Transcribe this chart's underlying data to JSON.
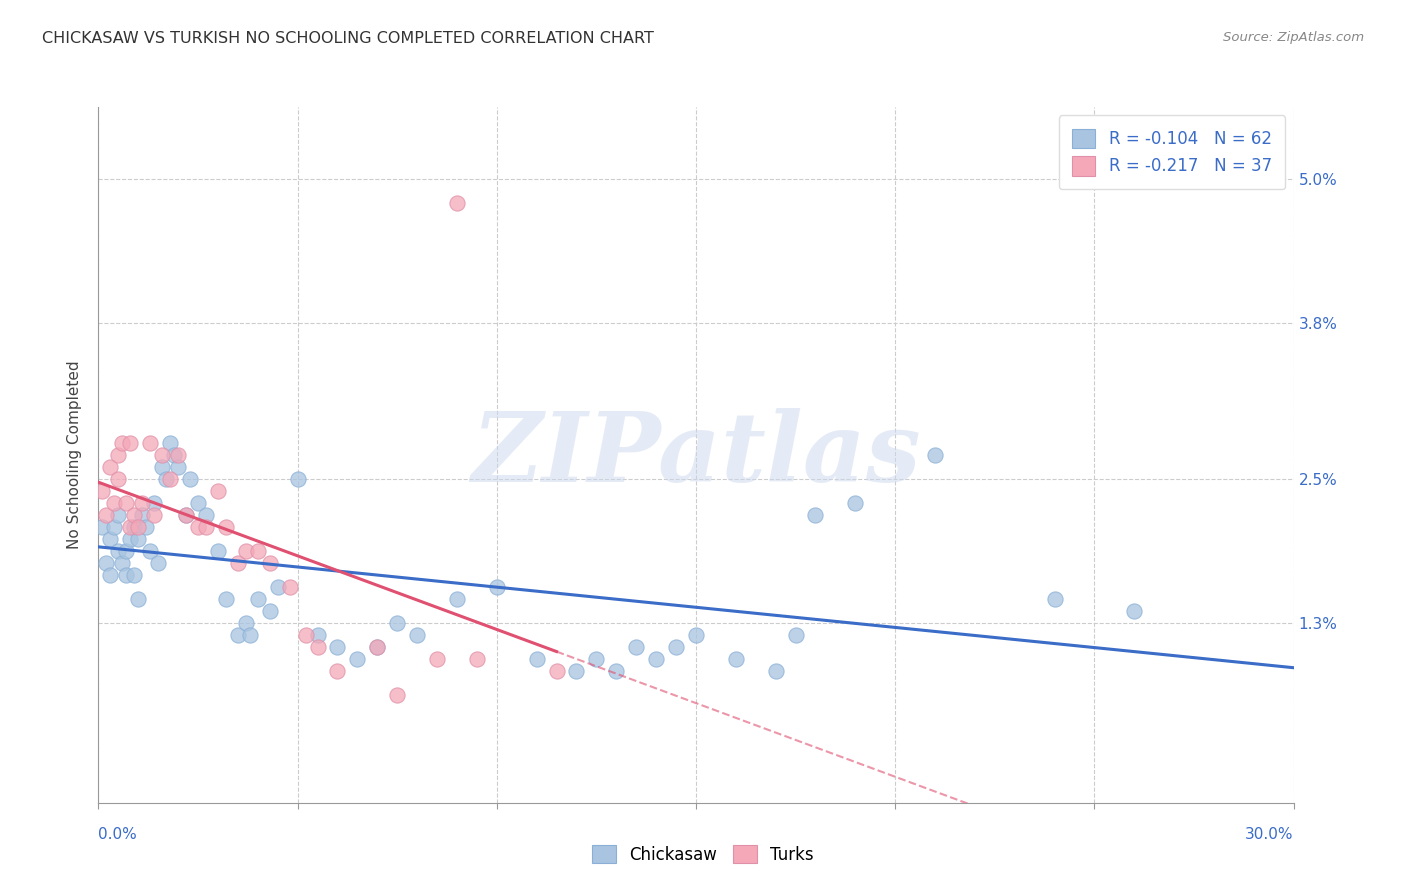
{
  "title": "CHICKASAW VS TURKISH NO SCHOOLING COMPLETED CORRELATION CHART",
  "source": "Source: ZipAtlas.com",
  "ylabel": "No Schooling Completed",
  "yticks": [
    "1.3%",
    "2.5%",
    "3.8%",
    "5.0%"
  ],
  "ytick_values": [
    0.013,
    0.025,
    0.038,
    0.05
  ],
  "xlim": [
    0.0,
    0.3
  ],
  "ylim": [
    -0.002,
    0.056
  ],
  "chickasaw_R": -0.104,
  "chickasaw_N": 62,
  "turks_R": -0.217,
  "turks_N": 37,
  "chickasaw_color": "#a8c4e0",
  "turks_color": "#f4a8b8",
  "chickasaw_line_color": "#3a6cc8",
  "turks_line_color": "#e05070",
  "watermark": "ZIPatlas",
  "chickasaw_x": [
    0.001,
    0.002,
    0.003,
    0.003,
    0.004,
    0.005,
    0.005,
    0.006,
    0.007,
    0.007,
    0.008,
    0.009,
    0.009,
    0.01,
    0.01,
    0.011,
    0.012,
    0.013,
    0.014,
    0.015,
    0.016,
    0.017,
    0.018,
    0.019,
    0.02,
    0.022,
    0.023,
    0.025,
    0.027,
    0.03,
    0.032,
    0.035,
    0.037,
    0.038,
    0.04,
    0.043,
    0.045,
    0.05,
    0.055,
    0.06,
    0.065,
    0.07,
    0.075,
    0.08,
    0.09,
    0.1,
    0.11,
    0.12,
    0.125,
    0.13,
    0.135,
    0.14,
    0.145,
    0.15,
    0.16,
    0.17,
    0.175,
    0.18,
    0.19,
    0.21,
    0.24,
    0.26
  ],
  "chickasaw_y": [
    0.021,
    0.018,
    0.02,
    0.017,
    0.021,
    0.022,
    0.019,
    0.018,
    0.019,
    0.017,
    0.02,
    0.021,
    0.017,
    0.02,
    0.015,
    0.022,
    0.021,
    0.019,
    0.023,
    0.018,
    0.026,
    0.025,
    0.028,
    0.027,
    0.026,
    0.022,
    0.025,
    0.023,
    0.022,
    0.019,
    0.015,
    0.012,
    0.013,
    0.012,
    0.015,
    0.014,
    0.016,
    0.025,
    0.012,
    0.011,
    0.01,
    0.011,
    0.013,
    0.012,
    0.015,
    0.016,
    0.01,
    0.009,
    0.01,
    0.009,
    0.011,
    0.01,
    0.011,
    0.012,
    0.01,
    0.009,
    0.012,
    0.022,
    0.023,
    0.027,
    0.015,
    0.014
  ],
  "turks_x": [
    0.001,
    0.002,
    0.003,
    0.004,
    0.005,
    0.005,
    0.006,
    0.007,
    0.008,
    0.008,
    0.009,
    0.01,
    0.011,
    0.013,
    0.014,
    0.016,
    0.018,
    0.02,
    0.022,
    0.025,
    0.027,
    0.03,
    0.032,
    0.035,
    0.037,
    0.04,
    0.043,
    0.048,
    0.052,
    0.055,
    0.06,
    0.07,
    0.075,
    0.085,
    0.09,
    0.095,
    0.115
  ],
  "turks_y": [
    0.024,
    0.022,
    0.026,
    0.023,
    0.025,
    0.027,
    0.028,
    0.023,
    0.028,
    0.021,
    0.022,
    0.021,
    0.023,
    0.028,
    0.022,
    0.027,
    0.025,
    0.027,
    0.022,
    0.021,
    0.021,
    0.024,
    0.021,
    0.018,
    0.019,
    0.019,
    0.018,
    0.016,
    0.012,
    0.011,
    0.009,
    0.011,
    0.007,
    0.01,
    0.048,
    0.01,
    0.009
  ],
  "xtick_positions": [
    0.0,
    0.05,
    0.1,
    0.15,
    0.2,
    0.25,
    0.3
  ],
  "grid_color": "#cccccc",
  "background_color": "#ffffff"
}
